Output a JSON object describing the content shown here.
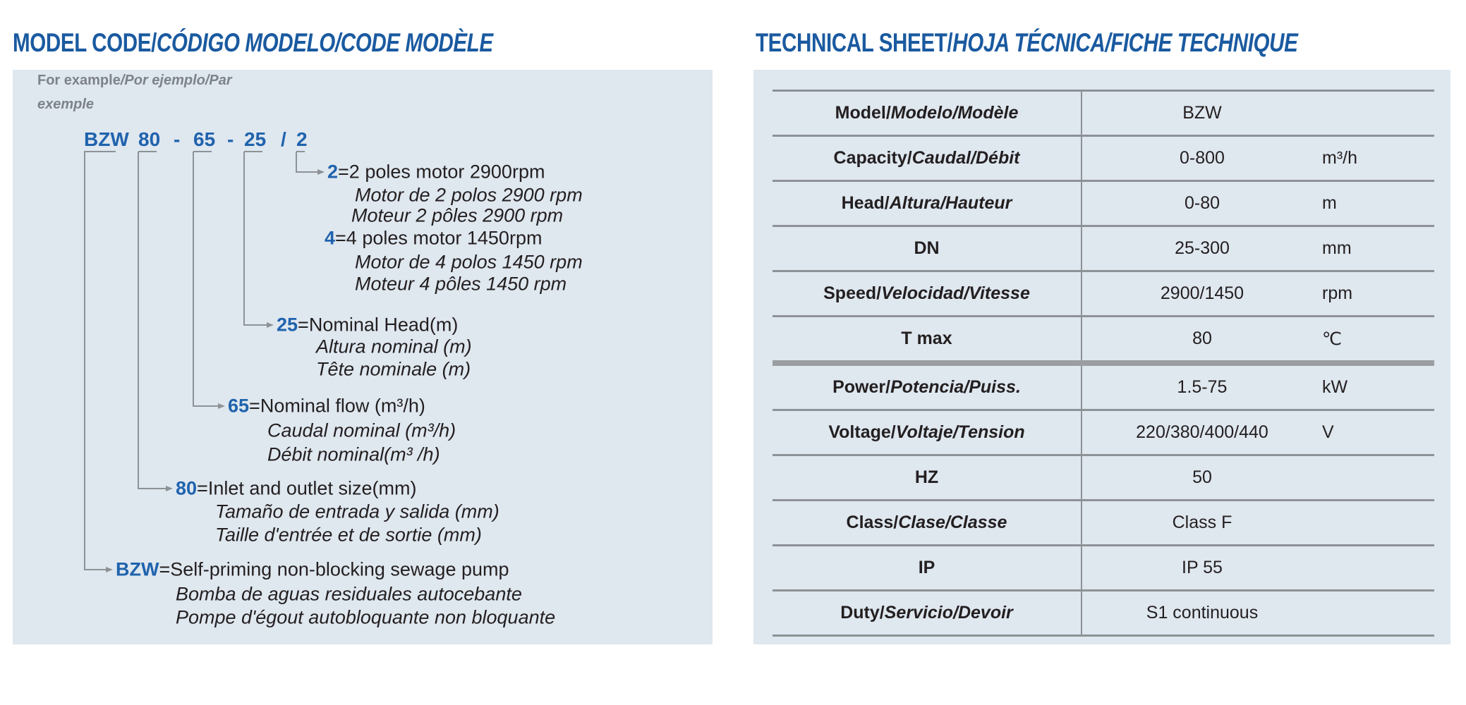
{
  "model_code": {
    "title_main": "MODEL CODE/",
    "title_rest": "CÓDIGO MODELO/CODE MODÈLE",
    "example_main": "For example",
    "example_rest": "/Por ejemplo/Par",
    "example_line2": "exemple",
    "code_parts": [
      "BZW",
      "80",
      "-",
      "65",
      "-",
      "25",
      "/",
      "2"
    ],
    "entries": [
      {
        "code": "2",
        "text": "=2 poles motor 2900rpm",
        "es": "Motor de 2 polos 2900 rpm",
        "fr": "Moteur 2 pôles 2900 rpm"
      },
      {
        "code": "4",
        "text": "=4 poles motor 1450rpm",
        "es": "Motor de 4 polos 1450 rpm",
        "fr": "Moteur 4 pôles 1450 rpm"
      },
      {
        "code": "25",
        "text": "=Nominal Head(m)",
        "es": "Altura nominal (m)",
        "fr": "Tête nominale (m)"
      },
      {
        "code": "65",
        "text": "=Nominal flow (m³/h)",
        "es": "Caudal nominal (m³/h)",
        "fr": "Débit nominal(m³ /h)"
      },
      {
        "code": "80",
        "text": "=Inlet and outlet size(mm)",
        "es": "Tamaño de entrada y salida (mm)",
        "fr": "Taille d'entrée et de sortie (mm)"
      },
      {
        "code": "BZW",
        "text": "=Self-priming non-blocking sewage pump",
        "es": "Bomba de aguas residuales autocebante",
        "fr": "Pompe d'égout autobloquante non bloquante"
      }
    ]
  },
  "technical_sheet": {
    "title_main": "TECHNICAL SHEET/",
    "title_rest": "HOJA TÉCNICA/FICHE TECHNIQUE",
    "rows": [
      {
        "en": "Model/",
        "rest": "Modelo/Modèle",
        "value": "BZW",
        "unit": ""
      },
      {
        "en": "Capacity/",
        "rest": "Caudal/Débit",
        "value": "0-800",
        "unit": "m³/h"
      },
      {
        "en": "Head/",
        "rest": "Altura/Hauteur",
        "value": "0-80",
        "unit": "m"
      },
      {
        "en": "DN",
        "rest": "",
        "value": "25-300",
        "unit": "mm"
      },
      {
        "en": "Speed/",
        "rest": "Velocidad/Vitesse",
        "value": "2900/1450",
        "unit": "rpm"
      },
      {
        "en": "T max",
        "rest": "",
        "value": "80",
        "unit": "℃"
      },
      {
        "en": "Power/",
        "rest": "Potencia/Puiss.",
        "value": "1.5-75",
        "unit": "kW"
      },
      {
        "en": "Voltage/",
        "rest": "Voltaje/Tension",
        "value": "220/380/400/440",
        "unit": "V"
      },
      {
        "en": "HZ",
        "rest": "",
        "value": "50",
        "unit": ""
      },
      {
        "en": "Class/",
        "rest": "Clase/Classe",
        "value": "Class F",
        "unit": ""
      },
      {
        "en": "IP",
        "rest": "",
        "value": "IP 55",
        "unit": ""
      },
      {
        "en": "Duty/",
        "rest": "Servicio/Devoir",
        "value": "S1 continuous",
        "unit": ""
      }
    ]
  },
  "colors": {
    "accent": "#1f63ad",
    "title": "#1a5aa0",
    "panel": "#dfe7ef"
  }
}
